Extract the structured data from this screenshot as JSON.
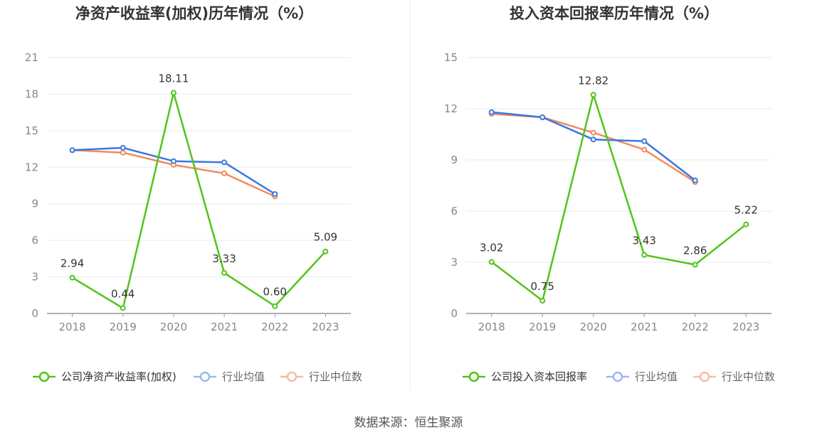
{
  "source_prefix": "数据来源：",
  "source_name": "恒生聚源",
  "chart_data": [
    {
      "type": "line",
      "title": "净资产收益率(加权)历年情况（%）",
      "categories": [
        "2018",
        "2019",
        "2020",
        "2021",
        "2022",
        "2023"
      ],
      "ylim": [
        0,
        21
      ],
      "yticks": [
        0,
        3,
        6,
        9,
        12,
        15,
        18,
        21
      ],
      "series": [
        {
          "name": "公司净资产收益率(加权)",
          "color": "#52c41a",
          "values": [
            2.94,
            0.44,
            18.11,
            3.33,
            0.6,
            5.09
          ],
          "labels": [
            "2.94",
            "0.44",
            "18.11",
            "3.33",
            "0.60",
            "5.09"
          ]
        },
        {
          "name": "行业均值",
          "color": "#3a78e0",
          "values": [
            13.4,
            13.6,
            12.5,
            12.4,
            9.8,
            null
          ]
        },
        {
          "name": "行业中位数",
          "color": "#f4895f",
          "values": [
            13.4,
            13.2,
            12.2,
            11.5,
            9.6,
            null
          ]
        }
      ]
    },
    {
      "type": "line",
      "title": "投入资本回报率历年情况（%）",
      "categories": [
        "2018",
        "2019",
        "2020",
        "2021",
        "2022",
        "2023"
      ],
      "ylim": [
        0,
        15
      ],
      "yticks": [
        0,
        3,
        6,
        9,
        12,
        15
      ],
      "series": [
        {
          "name": "公司投入资本回报率",
          "color": "#52c41a",
          "values": [
            3.02,
            0.75,
            12.82,
            3.43,
            2.86,
            5.22
          ],
          "labels": [
            "3.02",
            "0.75",
            "12.82",
            "3.43",
            "2.86",
            "5.22"
          ]
        },
        {
          "name": "行业均值",
          "color": "#3a78e0",
          "values": [
            11.8,
            11.5,
            10.2,
            10.1,
            7.8,
            null
          ]
        },
        {
          "name": "行业中位数",
          "color": "#f4895f",
          "values": [
            11.7,
            11.5,
            10.6,
            9.6,
            7.7,
            null
          ]
        }
      ]
    }
  ]
}
